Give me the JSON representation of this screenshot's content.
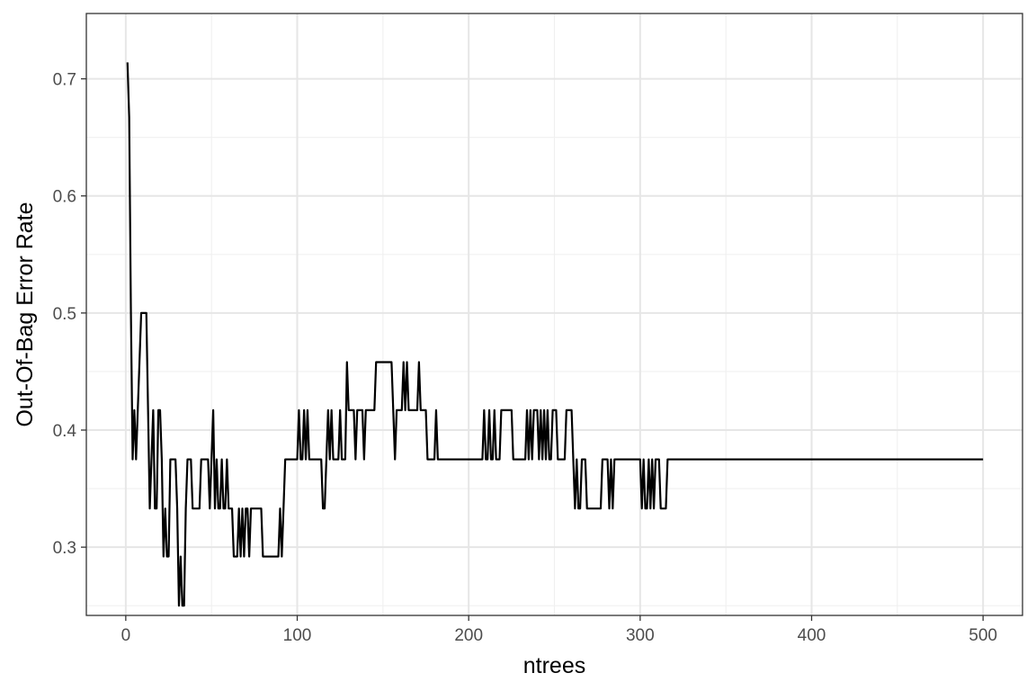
{
  "chart_data": {
    "type": "line",
    "title": "",
    "xlabel": "ntrees",
    "ylabel": "Out-Of-Bag Error Rate",
    "xlim": [
      -23,
      523
    ],
    "ylim": [
      0.2417,
      0.7558
    ],
    "x_ticks": [
      0,
      100,
      200,
      300,
      400,
      500
    ],
    "x_tick_labels": [
      "0",
      "100",
      "200",
      "300",
      "400",
      "500"
    ],
    "y_ticks": [
      0.3,
      0.4,
      0.5,
      0.6,
      0.7
    ],
    "y_tick_labels": [
      "0.3",
      "0.4",
      "0.5",
      "0.6",
      "0.7"
    ],
    "grid": true,
    "line_color": "#000000",
    "series": [
      {
        "points": [
          [
            1,
            0.714
          ],
          [
            2,
            0.667
          ],
          [
            3,
            0.5
          ],
          [
            4,
            0.375
          ],
          [
            5,
            0.417
          ],
          [
            6,
            0.375
          ],
          [
            7,
            0.417
          ],
          [
            8,
            0.458
          ],
          [
            9,
            0.5
          ],
          [
            12,
            0.5
          ],
          [
            13,
            0.417
          ],
          [
            14,
            0.333
          ],
          [
            15,
            0.375
          ],
          [
            16,
            0.417
          ],
          [
            17,
            0.333
          ],
          [
            18,
            0.333
          ],
          [
            19,
            0.417
          ],
          [
            20,
            0.417
          ],
          [
            21,
            0.375
          ],
          [
            22,
            0.292
          ],
          [
            23,
            0.333
          ],
          [
            24,
            0.292
          ],
          [
            25,
            0.292
          ],
          [
            26,
            0.375
          ],
          [
            29,
            0.375
          ],
          [
            30,
            0.333
          ],
          [
            31,
            0.25
          ],
          [
            32,
            0.292
          ],
          [
            33,
            0.25
          ],
          [
            34,
            0.25
          ],
          [
            35,
            0.333
          ],
          [
            36,
            0.375
          ],
          [
            38,
            0.375
          ],
          [
            39,
            0.333
          ],
          [
            43,
            0.333
          ],
          [
            44,
            0.375
          ],
          [
            48,
            0.375
          ],
          [
            49,
            0.333
          ],
          [
            50,
            0.375
          ],
          [
            51,
            0.417
          ],
          [
            52,
            0.333
          ],
          [
            53,
            0.375
          ],
          [
            54,
            0.333
          ],
          [
            55,
            0.333
          ],
          [
            56,
            0.375
          ],
          [
            57,
            0.333
          ],
          [
            58,
            0.333
          ],
          [
            59,
            0.375
          ],
          [
            60,
            0.333
          ],
          [
            62,
            0.333
          ],
          [
            63,
            0.292
          ],
          [
            65,
            0.292
          ],
          [
            66,
            0.333
          ],
          [
            67,
            0.292
          ],
          [
            68,
            0.333
          ],
          [
            69,
            0.292
          ],
          [
            70,
            0.333
          ],
          [
            71,
            0.333
          ],
          [
            72,
            0.292
          ],
          [
            73,
            0.333
          ],
          [
            79,
            0.333
          ],
          [
            80,
            0.292
          ],
          [
            89,
            0.292
          ],
          [
            90,
            0.333
          ],
          [
            91,
            0.292
          ],
          [
            92,
            0.333
          ],
          [
            93,
            0.375
          ],
          [
            100,
            0.375
          ],
          [
            101,
            0.417
          ],
          [
            102,
            0.375
          ],
          [
            103,
            0.375
          ],
          [
            104,
            0.417
          ],
          [
            105,
            0.375
          ],
          [
            106,
            0.417
          ],
          [
            107,
            0.375
          ],
          [
            114,
            0.375
          ],
          [
            115,
            0.333
          ],
          [
            116,
            0.333
          ],
          [
            117,
            0.375
          ],
          [
            118,
            0.417
          ],
          [
            119,
            0.375
          ],
          [
            120,
            0.417
          ],
          [
            121,
            0.375
          ],
          [
            124,
            0.375
          ],
          [
            125,
            0.417
          ],
          [
            126,
            0.375
          ],
          [
            128,
            0.375
          ],
          [
            129,
            0.458
          ],
          [
            130,
            0.417
          ],
          [
            133,
            0.417
          ],
          [
            134,
            0.375
          ],
          [
            135,
            0.417
          ],
          [
            138,
            0.417
          ],
          [
            139,
            0.375
          ],
          [
            140,
            0.417
          ],
          [
            145,
            0.417
          ],
          [
            146,
            0.458
          ],
          [
            155,
            0.458
          ],
          [
            156,
            0.417
          ],
          [
            157,
            0.375
          ],
          [
            158,
            0.417
          ],
          [
            161,
            0.417
          ],
          [
            162,
            0.458
          ],
          [
            163,
            0.417
          ],
          [
            164,
            0.458
          ],
          [
            165,
            0.417
          ],
          [
            170,
            0.417
          ],
          [
            171,
            0.458
          ],
          [
            172,
            0.417
          ],
          [
            175,
            0.417
          ],
          [
            176,
            0.375
          ],
          [
            180,
            0.375
          ],
          [
            181,
            0.417
          ],
          [
            182,
            0.375
          ],
          [
            208,
            0.375
          ],
          [
            209,
            0.417
          ],
          [
            210,
            0.375
          ],
          [
            211,
            0.375
          ],
          [
            212,
            0.417
          ],
          [
            213,
            0.375
          ],
          [
            214,
            0.375
          ],
          [
            215,
            0.417
          ],
          [
            216,
            0.375
          ],
          [
            218,
            0.375
          ],
          [
            219,
            0.417
          ],
          [
            225,
            0.417
          ],
          [
            226,
            0.375
          ],
          [
            233,
            0.375
          ],
          [
            234,
            0.417
          ],
          [
            235,
            0.375
          ],
          [
            236,
            0.417
          ],
          [
            237,
            0.375
          ],
          [
            238,
            0.417
          ],
          [
            240,
            0.417
          ],
          [
            241,
            0.375
          ],
          [
            242,
            0.417
          ],
          [
            243,
            0.375
          ],
          [
            244,
            0.417
          ],
          [
            245,
            0.375
          ],
          [
            246,
            0.417
          ],
          [
            247,
            0.375
          ],
          [
            248,
            0.375
          ],
          [
            249,
            0.417
          ],
          [
            251,
            0.417
          ],
          [
            252,
            0.375
          ],
          [
            256,
            0.375
          ],
          [
            257,
            0.417
          ],
          [
            260,
            0.417
          ],
          [
            261,
            0.375
          ],
          [
            262,
            0.333
          ],
          [
            263,
            0.375
          ],
          [
            264,
            0.333
          ],
          [
            265,
            0.333
          ],
          [
            266,
            0.375
          ],
          [
            268,
            0.375
          ],
          [
            269,
            0.333
          ],
          [
            277,
            0.333
          ],
          [
            278,
            0.375
          ],
          [
            281,
            0.375
          ],
          [
            282,
            0.333
          ],
          [
            283,
            0.375
          ],
          [
            284,
            0.333
          ],
          [
            285,
            0.375
          ],
          [
            300,
            0.375
          ],
          [
            301,
            0.333
          ],
          [
            302,
            0.375
          ],
          [
            303,
            0.333
          ],
          [
            304,
            0.333
          ],
          [
            305,
            0.375
          ],
          [
            306,
            0.333
          ],
          [
            307,
            0.375
          ],
          [
            308,
            0.333
          ],
          [
            309,
            0.375
          ],
          [
            311,
            0.375
          ],
          [
            312,
            0.333
          ],
          [
            315,
            0.333
          ],
          [
            316,
            0.375
          ],
          [
            500,
            0.375
          ]
        ]
      }
    ]
  }
}
